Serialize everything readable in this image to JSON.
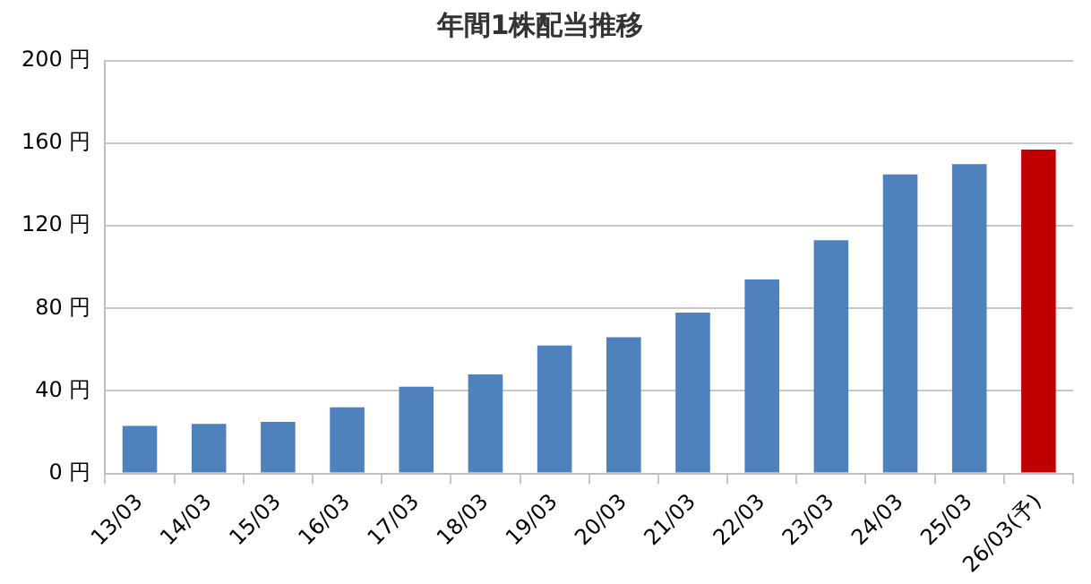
{
  "chart_data": {
    "type": "bar",
    "title": "年間1株配当推移",
    "categories": [
      "13/03",
      "14/03",
      "15/03",
      "16/03",
      "17/03",
      "18/03",
      "19/03",
      "20/03",
      "21/03",
      "22/03",
      "23/03",
      "24/03",
      "25/03",
      "26/03(予)"
    ],
    "values": [
      23,
      24,
      25,
      32,
      42,
      48,
      62,
      66,
      78,
      94,
      113,
      145,
      150,
      157
    ],
    "colors": [
      "#4f81bd",
      "#4f81bd",
      "#4f81bd",
      "#4f81bd",
      "#4f81bd",
      "#4f81bd",
      "#4f81bd",
      "#4f81bd",
      "#4f81bd",
      "#4f81bd",
      "#4f81bd",
      "#4f81bd",
      "#4f81bd",
      "#c00000"
    ],
    "ylim": [
      0,
      200
    ],
    "yticks": [
      {
        "value": 0,
        "label": "0 円"
      },
      {
        "value": 40,
        "label": "40 円"
      },
      {
        "value": 80,
        "label": "80 円"
      },
      {
        "value": 120,
        "label": "120 円"
      },
      {
        "value": 160,
        "label": "160 円"
      },
      {
        "value": 200,
        "label": "200 円"
      }
    ],
    "grid": "y",
    "legend": false
  }
}
